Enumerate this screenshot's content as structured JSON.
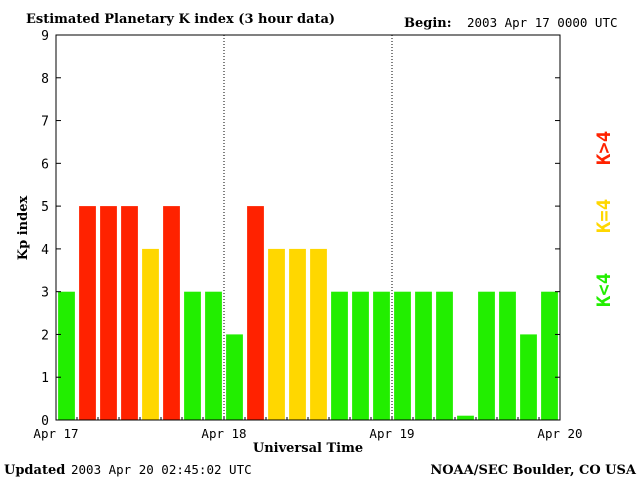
{
  "header": {
    "title": "Estimated Planetary K index (3 hour data)",
    "begin_label": "Begin:",
    "begin_value": "2003 Apr 17 0000 UTC"
  },
  "footer": {
    "updated_label": "Updated",
    "updated_value": "2003 Apr 20 02:45:02 UTC",
    "source": "NOAA/SEC Boulder, CO USA"
  },
  "legend": [
    {
      "label": "K>4",
      "color": "#ff2200"
    },
    {
      "label": "K=4",
      "color": "#ffd700"
    },
    {
      "label": "K<4",
      "color": "#22ee00"
    }
  ],
  "chart_data": {
    "type": "bar",
    "title": "Estimated Planetary K index (3 hour data)",
    "xlabel": "Universal Time",
    "ylabel": "Kp index",
    "ylim": [
      0,
      9
    ],
    "yticks": [
      "0",
      "1",
      "2",
      "3",
      "4",
      "5",
      "6",
      "7",
      "8",
      "9"
    ],
    "xticks": [
      "Apr 17",
      "Apr 18",
      "Apr 19",
      "Apr 20"
    ],
    "interval_hours": 3,
    "values": [
      3,
      5,
      5,
      5,
      4,
      5,
      3,
      3,
      2,
      5,
      4,
      4,
      4,
      3,
      3,
      3,
      3,
      3,
      3,
      0.1,
      3,
      3,
      2,
      3
    ],
    "colors": {
      "low": "#22ee00",
      "equal": "#ffd700",
      "high": "#ff2200"
    },
    "grid": "dotted vertical lines at day boundaries"
  }
}
